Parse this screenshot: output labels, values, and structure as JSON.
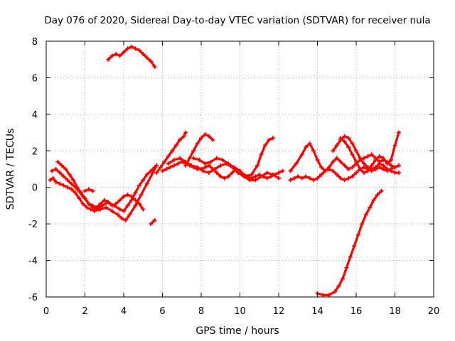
{
  "chart_data": {
    "type": "line",
    "title": "Day 076 of 2020, Sidereal Day-to-day VTEC variation (SDTVAR) for receiver nula",
    "xlabel": "GPS time / hours",
    "ylabel": "SDTVAR / TECUs",
    "xlim": [
      0,
      20
    ],
    "ylim": [
      -6,
      8
    ],
    "xticks": [
      0,
      2,
      4,
      6,
      8,
      10,
      12,
      14,
      16,
      18,
      20
    ],
    "yticks": [
      -6,
      -4,
      -2,
      0,
      2,
      4,
      6,
      8
    ],
    "grid": true,
    "color": "#ff0000",
    "series": [
      {
        "name": "s1",
        "x": [
          0.2,
          0.35,
          0.5,
          0.7,
          0.9,
          1.1,
          1.3,
          1.5,
          1.7,
          1.9,
          2.1,
          2.3,
          2.5,
          2.8,
          3.1,
          3.4,
          3.7,
          3.9,
          4.1,
          4.3,
          4.6,
          4.9,
          5.2,
          5.5,
          5.7
        ],
        "y": [
          0.4,
          0.5,
          0.3,
          0.2,
          0.1,
          0.0,
          -0.1,
          -0.3,
          -0.6,
          -0.9,
          -1.1,
          -1.2,
          -1.3,
          -1.2,
          -1.1,
          -1.3,
          -1.5,
          -1.7,
          -1.8,
          -1.5,
          -1.0,
          -0.4,
          0.2,
          0.8,
          1.2
        ]
      },
      {
        "name": "s2",
        "x": [
          0.3,
          0.5,
          0.7,
          0.9,
          1.1,
          1.3,
          1.6,
          1.9,
          2.2,
          2.4,
          2.6,
          2.9,
          3.2,
          3.5,
          3.8,
          4.0,
          4.2,
          4.4,
          4.6,
          4.8,
          5.0,
          5.2,
          5.4,
          5.6
        ],
        "y": [
          0.9,
          1.0,
          0.8,
          0.6,
          0.4,
          0.2,
          -0.1,
          -0.5,
          -0.9,
          -1.1,
          -1.2,
          -1.0,
          -0.8,
          -1.0,
          -1.2,
          -1.3,
          -1.0,
          -0.7,
          -0.3,
          0.1,
          0.4,
          0.7,
          0.9,
          1.1
        ]
      },
      {
        "name": "s3",
        "x": [
          0.6,
          0.8,
          1.0,
          1.2,
          1.4,
          1.6,
          1.8,
          2.0,
          2.2,
          2.4,
          2.6,
          2.8,
          3.0,
          3.2,
          3.4,
          3.6,
          3.8,
          4.0,
          4.2,
          4.4,
          4.6,
          4.8,
          5.0
        ],
        "y": [
          1.4,
          1.2,
          1.0,
          0.7,
          0.4,
          0.0,
          -0.3,
          -0.6,
          -0.9,
          -1.0,
          -1.1,
          -0.9,
          -0.7,
          -0.8,
          -1.0,
          -0.9,
          -0.7,
          -0.5,
          -0.4,
          -0.5,
          -0.7,
          -0.9,
          -1.2
        ]
      },
      {
        "name": "s4",
        "x": [
          2.0,
          2.2,
          2.4
        ],
        "y": [
          -0.2,
          -0.1,
          -0.2
        ]
      },
      {
        "name": "s5",
        "x": [
          3.2,
          3.4,
          3.6,
          3.8,
          4.0,
          4.2,
          4.4,
          4.6,
          4.8,
          5.0,
          5.2,
          5.4,
          5.6
        ],
        "y": [
          7.0,
          7.2,
          7.3,
          7.2,
          7.4,
          7.6,
          7.7,
          7.6,
          7.5,
          7.3,
          7.1,
          6.9,
          6.6
        ]
      },
      {
        "name": "s6",
        "x": [
          5.4,
          5.6
        ],
        "y": [
          -2.0,
          -1.8
        ]
      },
      {
        "name": "s7",
        "x": [
          5.7,
          5.9,
          6.1,
          6.3,
          6.5,
          6.7,
          6.9,
          7.1,
          7.2
        ],
        "y": [
          0.8,
          1.1,
          1.4,
          1.7,
          2.0,
          2.3,
          2.6,
          2.8,
          3.0
        ]
      },
      {
        "name": "s8",
        "x": [
          6.0,
          6.2,
          6.4,
          6.6,
          6.8,
          7.0,
          7.2,
          7.4,
          7.6,
          7.8,
          8.0,
          8.2,
          8.4,
          8.6,
          8.8,
          9.0,
          9.2,
          9.4,
          9.6,
          9.8,
          10.0,
          10.2,
          10.4,
          10.6,
          10.8,
          11.0,
          11.2,
          11.4,
          11.6,
          11.8,
          12.0,
          12.2
        ],
        "y": [
          0.9,
          1.0,
          1.1,
          1.2,
          1.3,
          1.4,
          1.3,
          1.2,
          1.1,
          1.0,
          1.0,
          1.1,
          1.2,
          1.0,
          0.8,
          0.6,
          0.5,
          0.6,
          0.8,
          1.0,
          0.9,
          0.7,
          0.6,
          0.5,
          0.6,
          0.7,
          0.6,
          0.5,
          0.6,
          0.7,
          0.8,
          0.9
        ]
      },
      {
        "name": "s9",
        "x": [
          6.3,
          6.6,
          6.9,
          7.2,
          7.5,
          7.8,
          8.1,
          8.4,
          8.7,
          9.0,
          9.3,
          9.6,
          9.9,
          10.2,
          10.5,
          10.8,
          11.1,
          11.4,
          11.7,
          12.0
        ],
        "y": [
          1.3,
          1.5,
          1.6,
          1.4,
          1.2,
          1.1,
          0.9,
          0.8,
          1.0,
          1.2,
          1.3,
          1.1,
          0.8,
          0.6,
          0.4,
          0.4,
          0.6,
          0.8,
          0.7,
          0.5
        ]
      },
      {
        "name": "s10",
        "x": [
          7.2,
          7.4,
          7.6,
          7.8,
          8.0,
          8.2,
          8.4,
          8.6
        ],
        "y": [
          1.2,
          1.6,
          2.0,
          2.4,
          2.7,
          2.9,
          2.8,
          2.6
        ]
      },
      {
        "name": "s11",
        "x": [
          7.6,
          7.9,
          8.2,
          8.5,
          8.8,
          9.1,
          9.4,
          9.7,
          10.0
        ],
        "y": [
          1.6,
          1.5,
          1.3,
          1.4,
          1.6,
          1.5,
          1.3,
          1.1,
          0.9
        ]
      },
      {
        "name": "s12",
        "x": [
          10.3,
          10.6,
          10.9,
          11.1,
          11.3,
          11.5,
          11.7
        ],
        "y": [
          0.6,
          0.7,
          1.2,
          1.8,
          2.3,
          2.6,
          2.7
        ]
      },
      {
        "name": "s13",
        "x": [
          12.6,
          12.8,
          13.0,
          13.2,
          13.4,
          13.6,
          13.8,
          14.0,
          14.2,
          14.4,
          14.6,
          14.8,
          15.0,
          15.2,
          15.4,
          15.6,
          15.8,
          16.0,
          16.2,
          16.4,
          16.6,
          16.8,
          17.0,
          17.2,
          17.4,
          17.6,
          17.8,
          18.0,
          18.2
        ],
        "y": [
          0.4,
          0.5,
          0.6,
          0.5,
          0.6,
          0.5,
          0.4,
          0.5,
          0.7,
          0.9,
          1.0,
          0.9,
          0.7,
          0.5,
          0.4,
          0.5,
          0.6,
          0.8,
          1.0,
          1.1,
          1.0,
          0.9,
          1.0,
          1.1,
          1.0,
          0.9,
          1.0,
          1.1,
          1.2
        ]
      },
      {
        "name": "s14",
        "x": [
          12.6,
          12.9,
          13.2,
          13.4,
          13.6,
          13.8,
          14.0,
          14.2,
          14.4,
          14.6,
          14.8,
          15.0,
          15.2,
          15.4,
          15.6,
          15.8,
          16.0,
          16.2,
          16.4,
          16.6,
          16.8,
          17.0,
          17.2,
          17.4,
          17.6,
          17.8,
          18.0
        ],
        "y": [
          0.9,
          1.3,
          1.8,
          2.2,
          2.4,
          2.0,
          1.5,
          1.1,
          0.9,
          1.1,
          1.4,
          1.6,
          1.4,
          1.2,
          1.0,
          1.1,
          1.3,
          1.5,
          1.6,
          1.7,
          1.8,
          1.6,
          1.4,
          1.5,
          1.4,
          1.2,
          1.1
        ]
      },
      {
        "name": "s15",
        "x": [
          14.8,
          15.0,
          15.2,
          15.4,
          15.6,
          15.8,
          16.0,
          16.2,
          16.4,
          16.6,
          16.8,
          17.0,
          17.2,
          17.4,
          17.6,
          17.8,
          18.0,
          18.2
        ],
        "y": [
          2.0,
          2.3,
          2.6,
          2.8,
          2.7,
          2.4,
          2.0,
          1.6,
          1.3,
          1.1,
          1.0,
          1.1,
          1.3,
          1.2,
          1.0,
          0.9,
          0.8,
          0.8
        ]
      },
      {
        "name": "s16",
        "x": [
          15.2,
          15.4,
          15.6,
          15.8,
          16.0,
          16.2,
          16.4,
          16.6,
          16.8,
          17.0,
          17.2,
          17.4,
          17.6,
          17.8,
          18.0,
          18.2
        ],
        "y": [
          2.7,
          2.5,
          2.2,
          1.8,
          1.4,
          1.0,
          0.8,
          0.9,
          1.2,
          1.5,
          1.7,
          1.6,
          1.3,
          1.5,
          2.3,
          3.0
        ]
      },
      {
        "name": "s17",
        "x": [
          14.0,
          14.3,
          14.6,
          14.9,
          15.1,
          15.3,
          15.5,
          15.7,
          15.9,
          16.1,
          16.3,
          16.5,
          16.7,
          16.9,
          17.1,
          17.3
        ],
        "y": [
          -5.8,
          -5.9,
          -5.9,
          -5.7,
          -5.4,
          -5.0,
          -4.4,
          -3.8,
          -3.2,
          -2.6,
          -2.0,
          -1.5,
          -1.1,
          -0.7,
          -0.4,
          -0.2
        ]
      }
    ]
  }
}
